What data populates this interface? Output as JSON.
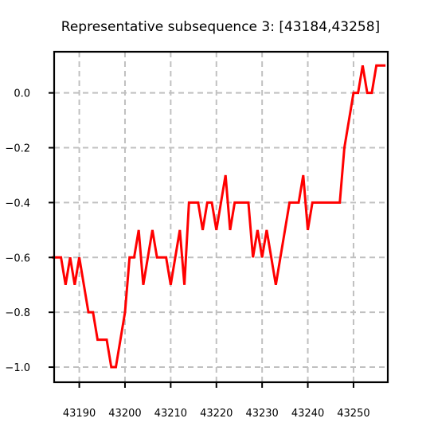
{
  "chart_data": {
    "type": "line",
    "title": "Representative subsequence 3: [43184,43258]",
    "xlabel": "",
    "ylabel": "",
    "xlim": [
      43184.5,
      43257.5
    ],
    "ylim": [
      -1.055,
      0.15
    ],
    "xticks": [
      43190,
      43200,
      43210,
      43220,
      43230,
      43240,
      43250
    ],
    "yticks": [
      0.0,
      -0.2,
      -0.4,
      -0.6,
      -0.8,
      -1.0
    ],
    "xtick_labels": [
      "43190",
      "43200",
      "43210",
      "43220",
      "43230",
      "43240",
      "43250"
    ],
    "ytick_labels": [
      "0.0",
      "−0.2",
      "−0.4",
      "−0.6",
      "−0.8",
      "−1.0"
    ],
    "grid": true,
    "legend": "none",
    "series": [
      {
        "color": "#ff0000",
        "x": [
          43184,
          43185,
          43186,
          43187,
          43188,
          43189,
          43190,
          43191,
          43192,
          43193,
          43194,
          43195,
          43196,
          43197,
          43198,
          43199,
          43200,
          43201,
          43202,
          43203,
          43204,
          43205,
          43206,
          43207,
          43208,
          43209,
          43210,
          43211,
          43212,
          43213,
          43214,
          43215,
          43216,
          43217,
          43218,
          43219,
          43220,
          43221,
          43222,
          43223,
          43224,
          43225,
          43226,
          43227,
          43228,
          43229,
          43230,
          43231,
          43232,
          43233,
          43234,
          43235,
          43236,
          43237,
          43238,
          43239,
          43240,
          43241,
          43242,
          43243,
          43244,
          43245,
          43246,
          43247,
          43248,
          43249,
          43250,
          43251,
          43252,
          43253,
          43254,
          43255,
          43256,
          43257
        ],
        "y": [
          -0.6,
          -0.6,
          -0.6,
          -0.7,
          -0.6,
          -0.7,
          -0.6,
          -0.7,
          -0.8,
          -0.8,
          -0.9,
          -0.9,
          -0.9,
          -1.0,
          -1.0,
          -0.9,
          -0.8,
          -0.6,
          -0.6,
          -0.5,
          -0.7,
          -0.6,
          -0.5,
          -0.6,
          -0.6,
          -0.6,
          -0.7,
          -0.6,
          -0.5,
          -0.7,
          -0.4,
          -0.4,
          -0.4,
          -0.5,
          -0.4,
          -0.4,
          -0.5,
          -0.4,
          -0.3,
          -0.5,
          -0.4,
          -0.4,
          -0.4,
          -0.4,
          -0.6,
          -0.5,
          -0.6,
          -0.5,
          -0.6,
          -0.7,
          -0.6,
          -0.5,
          -0.4,
          -0.4,
          -0.4,
          -0.3,
          -0.5,
          -0.4,
          -0.4,
          -0.4,
          -0.4,
          -0.4,
          -0.4,
          -0.4,
          -0.2,
          -0.1,
          0.0,
          0.0,
          0.1,
          0.0,
          0.0,
          0.1,
          0.1,
          0.1
        ]
      }
    ]
  }
}
